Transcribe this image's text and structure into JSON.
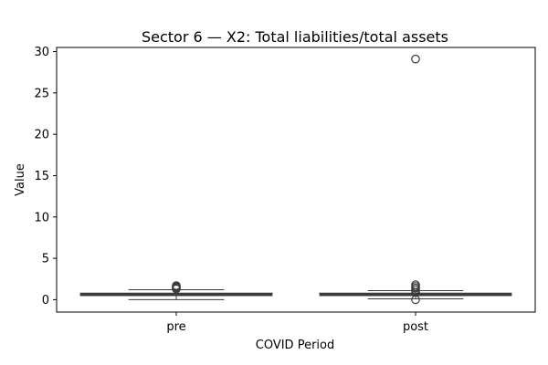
{
  "chart_data": {
    "type": "box",
    "title": "Sector 6 — X2: Total liabilities/total assets",
    "xlabel": "COVID Period",
    "ylabel": "Value",
    "ylim": [
      -1.5,
      30.5
    ],
    "yticks": [
      0,
      5,
      10,
      15,
      20,
      25,
      30
    ],
    "grid": false,
    "categories": [
      "pre",
      "post"
    ],
    "box_color": "#4c72b0",
    "median_color": "#3a3a3a",
    "series": [
      {
        "category": "pre",
        "whisker_low": 0.0,
        "q1": 0.5,
        "median": 0.62,
        "q3": 0.78,
        "whisker_high": 1.2,
        "outliers": [
          1.3,
          1.4,
          1.5,
          1.6,
          1.7
        ]
      },
      {
        "category": "post",
        "whisker_low": 0.1,
        "q1": 0.5,
        "median": 0.62,
        "q3": 0.78,
        "whisker_high": 1.1,
        "outliers": [
          0.0,
          0.9,
          1.2,
          1.4,
          1.6,
          1.8,
          29.1
        ]
      }
    ]
  }
}
